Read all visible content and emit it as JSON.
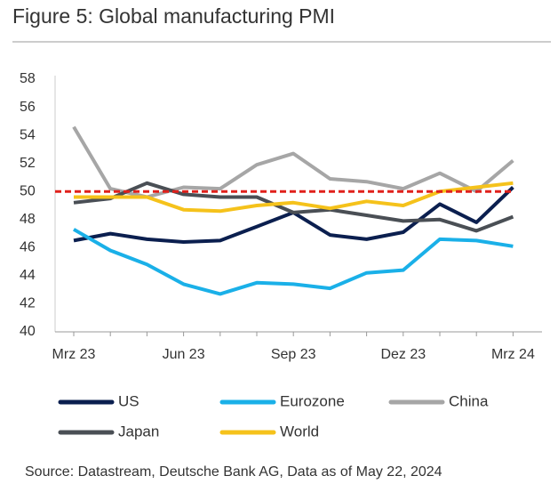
{
  "chart_data": {
    "type": "line",
    "title": "Figure 5: Global manufacturing PMI",
    "source": "Source: Datastream, Deutsche Bank AG, Data as of May 22, 2024",
    "categories": [
      "Mrz 23",
      null,
      null,
      "Jun 23",
      null,
      null,
      "Sep 23",
      null,
      null,
      "Dez 23",
      null,
      null,
      "Mrz 24"
    ],
    "series": [
      {
        "name": "US",
        "color": "#0b1f4f",
        "values": [
          46.5,
          47.0,
          46.6,
          46.4,
          46.5,
          47.5,
          48.5,
          46.9,
          46.6,
          47.1,
          49.1,
          47.8,
          50.3
        ]
      },
      {
        "name": "Eurozone",
        "color": "#1ab0e8",
        "values": [
          47.3,
          45.8,
          44.8,
          43.4,
          42.7,
          43.5,
          43.4,
          43.1,
          44.2,
          44.4,
          46.6,
          46.5,
          46.1
        ]
      },
      {
        "name": "China",
        "color": "#a6a6a6",
        "values": [
          54.6,
          50.2,
          49.6,
          50.3,
          50.2,
          51.9,
          52.7,
          50.9,
          50.7,
          50.2,
          51.3,
          50.0,
          52.2
        ]
      },
      {
        "name": "Japan",
        "color": "#4a4f55",
        "values": [
          49.2,
          49.5,
          50.6,
          49.8,
          49.6,
          49.6,
          48.5,
          48.7,
          48.3,
          47.9,
          48.0,
          47.2,
          48.2
        ]
      },
      {
        "name": "World",
        "color": "#f5c21b",
        "values": [
          49.6,
          49.6,
          49.6,
          48.7,
          48.6,
          49.0,
          49.2,
          48.8,
          49.3,
          49.0,
          50.0,
          50.3,
          50.6
        ]
      }
    ],
    "reference_line": {
      "value": 50,
      "color": "#e0201b"
    },
    "ylim": [
      40,
      58
    ],
    "yticks": [
      40,
      42,
      44,
      46,
      48,
      50,
      52,
      54,
      56,
      58
    ],
    "grid": false
  }
}
